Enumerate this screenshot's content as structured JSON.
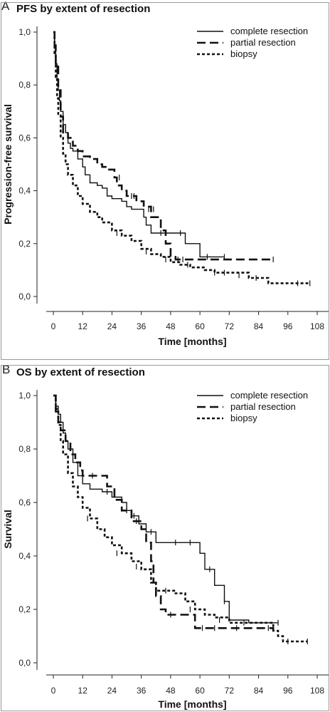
{
  "panels": {
    "a_letter": "A",
    "b_letter": "B"
  },
  "chart_data": [
    {
      "type": "line",
      "title": "PFS by extent of resection",
      "xlabel": "Time [months]",
      "ylabel": "Progression-free survival",
      "xlim": [
        0,
        108
      ],
      "ylim": [
        0,
        1
      ],
      "x_ticks": [
        "0",
        "12",
        "24",
        "36",
        "48",
        "60",
        "72",
        "84",
        "96",
        "108"
      ],
      "y_ticks": [
        "0,0",
        "0,2",
        "0,4",
        "0,6",
        "0,8",
        "1,0"
      ],
      "legend_placement": "top-right",
      "grid": false,
      "series": [
        {
          "name": "complete resection",
          "style": "solid",
          "color": "#111111",
          "x": [
            0,
            0.5,
            1,
            1.5,
            2,
            2.5,
            3,
            4,
            5,
            6,
            7,
            8,
            10,
            12,
            13,
            15,
            18,
            20,
            22,
            24,
            28,
            30,
            32,
            34,
            37,
            38,
            40,
            46,
            54,
            60,
            70
          ],
          "y": [
            1.0,
            0.95,
            0.88,
            0.82,
            0.78,
            0.74,
            0.7,
            0.65,
            0.62,
            0.58,
            0.56,
            0.55,
            0.52,
            0.49,
            0.46,
            0.43,
            0.42,
            0.41,
            0.38,
            0.37,
            0.36,
            0.34,
            0.33,
            0.33,
            0.3,
            0.27,
            0.24,
            0.24,
            0.2,
            0.15,
            0.15
          ],
          "censors": [
            [
              44,
              0.24
            ],
            [
              52,
              0.24
            ],
            [
              63,
              0.15
            ],
            [
              70,
              0.15
            ]
          ]
        },
        {
          "name": "partial resection",
          "style": "long-dash",
          "color": "#111111",
          "x": [
            0,
            0.5,
            1,
            2,
            3,
            4,
            6,
            8,
            10,
            12,
            15,
            18,
            20,
            22,
            25,
            26,
            28,
            30,
            34,
            37,
            40,
            44,
            46,
            48,
            50,
            58,
            70,
            90
          ],
          "y": [
            1.0,
            0.95,
            0.88,
            0.78,
            0.68,
            0.62,
            0.6,
            0.57,
            0.55,
            0.53,
            0.52,
            0.5,
            0.49,
            0.48,
            0.45,
            0.42,
            0.4,
            0.38,
            0.36,
            0.34,
            0.3,
            0.25,
            0.2,
            0.15,
            0.14,
            0.14,
            0.14,
            0.14
          ],
          "censors": [
            [
              27,
              0.45
            ],
            [
              32,
              0.38
            ],
            [
              33,
              0.38
            ],
            [
              39,
              0.33
            ],
            [
              41,
              0.33
            ],
            [
              51,
              0.14
            ],
            [
              53,
              0.14
            ],
            [
              90,
              0.14
            ]
          ]
        },
        {
          "name": "biopsy",
          "style": "short-dash",
          "color": "#111111",
          "x": [
            0,
            0.5,
            1,
            1.5,
            2,
            3,
            4,
            5,
            6,
            8,
            10,
            12,
            15,
            18,
            20,
            24,
            28,
            32,
            36,
            40,
            44,
            48,
            52,
            56,
            62,
            66,
            72,
            80,
            88,
            96,
            105
          ],
          "y": [
            1.0,
            0.92,
            0.83,
            0.75,
            0.69,
            0.6,
            0.54,
            0.5,
            0.46,
            0.42,
            0.38,
            0.35,
            0.32,
            0.3,
            0.28,
            0.25,
            0.23,
            0.21,
            0.18,
            0.16,
            0.15,
            0.13,
            0.12,
            0.11,
            0.1,
            0.09,
            0.09,
            0.07,
            0.05,
            0.05,
            0.05
          ],
          "censors": [
            [
              26,
              0.24
            ],
            [
              38,
              0.17
            ],
            [
              46,
              0.14
            ],
            [
              55,
              0.12
            ],
            [
              66,
              0.09
            ],
            [
              70,
              0.09
            ],
            [
              76,
              0.08
            ],
            [
              83,
              0.07
            ],
            [
              100,
              0.05
            ],
            [
              105,
              0.05
            ]
          ]
        }
      ]
    },
    {
      "type": "line",
      "title": "OS by extent of resection",
      "xlabel": "Time [months]",
      "ylabel": "Survival",
      "xlim": [
        0,
        108
      ],
      "ylim": [
        0,
        1
      ],
      "x_ticks": [
        "0",
        "12",
        "24",
        "36",
        "48",
        "60",
        "72",
        "84",
        "96",
        "108"
      ],
      "y_ticks": [
        "0,0",
        "0,2",
        "0,4",
        "0,6",
        "0,8",
        "1,0"
      ],
      "legend_placement": "top-right",
      "grid": false,
      "series": [
        {
          "name": "complete resection",
          "style": "solid",
          "color": "#111111",
          "x": [
            0,
            1,
            2,
            3,
            4,
            5,
            6,
            8,
            10,
            12,
            15,
            18,
            20,
            24,
            28,
            30,
            32,
            35,
            38,
            42,
            46,
            52,
            56,
            60,
            62,
            66,
            70,
            72,
            80,
            92
          ],
          "y": [
            1.0,
            0.96,
            0.93,
            0.9,
            0.86,
            0.83,
            0.8,
            0.75,
            0.7,
            0.67,
            0.65,
            0.65,
            0.64,
            0.62,
            0.6,
            0.57,
            0.55,
            0.52,
            0.49,
            0.45,
            0.45,
            0.45,
            0.45,
            0.41,
            0.35,
            0.29,
            0.23,
            0.16,
            0.15,
            0.15
          ],
          "censors": [
            [
              22,
              0.64
            ],
            [
              33,
              0.55
            ],
            [
              40,
              0.49
            ],
            [
              50,
              0.45
            ],
            [
              56,
              0.45
            ],
            [
              64,
              0.35
            ],
            [
              70,
              0.23
            ],
            [
              92,
              0.15
            ]
          ]
        },
        {
          "name": "partial resection",
          "style": "long-dash",
          "color": "#111111",
          "x": [
            0,
            1,
            2,
            3,
            5,
            7,
            9,
            11,
            12,
            15,
            18,
            22,
            25,
            28,
            32,
            36,
            38,
            40,
            41,
            42,
            44,
            46,
            50,
            58,
            64,
            70,
            84,
            90
          ],
          "y": [
            1.0,
            0.94,
            0.9,
            0.87,
            0.83,
            0.78,
            0.75,
            0.72,
            0.7,
            0.7,
            0.7,
            0.66,
            0.61,
            0.57,
            0.53,
            0.5,
            0.45,
            0.38,
            0.3,
            0.25,
            0.2,
            0.18,
            0.18,
            0.13,
            0.13,
            0.13,
            0.13,
            0.12
          ],
          "censors": [
            [
              16,
              0.7
            ],
            [
              30,
              0.57
            ],
            [
              34,
              0.53
            ],
            [
              48,
              0.18
            ],
            [
              61,
              0.13
            ],
            [
              66,
              0.13
            ],
            [
              75,
              0.13
            ],
            [
              88,
              0.13
            ]
          ]
        },
        {
          "name": "biopsy",
          "style": "short-dash",
          "color": "#111111",
          "x": [
            0,
            1,
            2,
            3,
            4,
            6,
            8,
            10,
            12,
            15,
            18,
            21,
            24,
            28,
            32,
            36,
            40,
            42,
            44,
            46,
            50,
            54,
            58,
            62,
            66,
            72,
            80,
            86,
            90,
            92,
            94,
            104
          ],
          "y": [
            1.0,
            0.95,
            0.89,
            0.83,
            0.78,
            0.71,
            0.66,
            0.62,
            0.58,
            0.54,
            0.5,
            0.47,
            0.44,
            0.41,
            0.38,
            0.35,
            0.3,
            0.27,
            0.27,
            0.27,
            0.26,
            0.23,
            0.2,
            0.18,
            0.17,
            0.15,
            0.15,
            0.15,
            0.12,
            0.1,
            0.08,
            0.08
          ],
          "censors": [
            [
              14,
              0.54
            ],
            [
              26,
              0.41
            ],
            [
              34,
              0.36
            ],
            [
              46,
              0.27
            ],
            [
              56,
              0.2
            ],
            [
              68,
              0.16
            ],
            [
              78,
              0.15
            ],
            [
              96,
              0.08
            ],
            [
              104,
              0.08
            ]
          ]
        }
      ]
    }
  ]
}
